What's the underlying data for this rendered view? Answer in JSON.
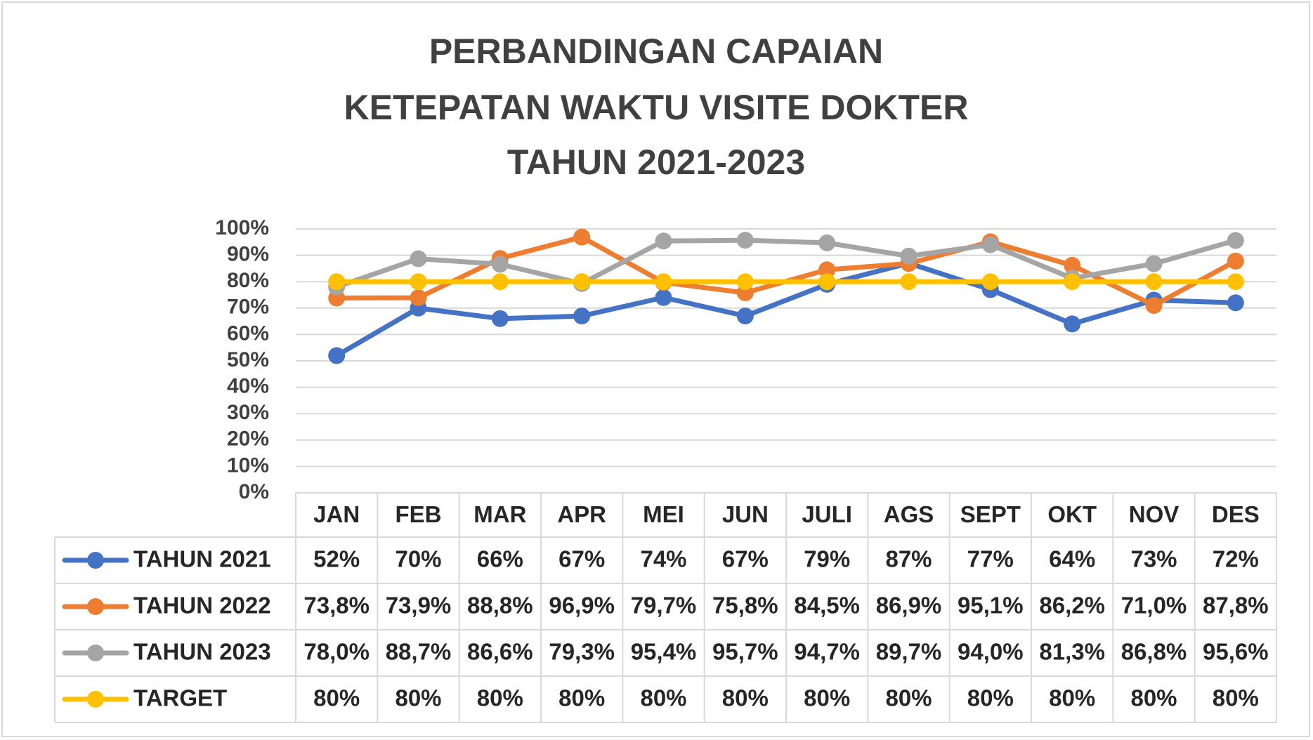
{
  "chart_data": {
    "type": "line",
    "title_lines": [
      "PERBANDINGAN CAPAIAN",
      "KETEPATAN WAKTU VISITE DOKTER",
      "TAHUN 2021-2023"
    ],
    "categories": [
      "JAN",
      "FEB",
      "MAR",
      "APR",
      "MEI",
      "JUN",
      "JULI",
      "AGS",
      "SEPT",
      "OKT",
      "NOV",
      "DES"
    ],
    "yticks": [
      "0%",
      "10%",
      "20%",
      "30%",
      "40%",
      "50%",
      "60%",
      "70%",
      "80%",
      "90%",
      "100%"
    ],
    "ylim": [
      0,
      100
    ],
    "grid": true,
    "legend": "data-table",
    "series": [
      {
        "name": "TAHUN 2021",
        "color": "#4472c4",
        "values": [
          52,
          70,
          66,
          67,
          74,
          67,
          79,
          87,
          77,
          64,
          73,
          72
        ],
        "labels": [
          "52%",
          "70%",
          "66%",
          "67%",
          "74%",
          "67%",
          "79%",
          "87%",
          "77%",
          "64%",
          "73%",
          "72%"
        ]
      },
      {
        "name": "TAHUN 2022",
        "color": "#ed7d31",
        "values": [
          73.8,
          73.9,
          88.8,
          96.9,
          79.7,
          75.8,
          84.5,
          86.9,
          95.1,
          86.2,
          71.0,
          87.8
        ],
        "labels": [
          "73,8%",
          "73,9%",
          "88,8%",
          "96,9%",
          "79,7%",
          "75,8%",
          "84,5%",
          "86,9%",
          "95,1%",
          "86,2%",
          "71,0%",
          "87,8%"
        ]
      },
      {
        "name": "TAHUN 2023",
        "color": "#a5a5a5",
        "values": [
          78.0,
          88.7,
          86.6,
          79.3,
          95.4,
          95.7,
          94.7,
          89.7,
          94.0,
          81.3,
          86.8,
          95.6
        ],
        "labels": [
          "78,0%",
          "88,7%",
          "86,6%",
          "79,3%",
          "95,4%",
          "95,7%",
          "94,7%",
          "89,7%",
          "94,0%",
          "81,3%",
          "86,8%",
          "95,6%"
        ]
      },
      {
        "name": "TARGET",
        "color": "#ffc000",
        "values": [
          80,
          80,
          80,
          80,
          80,
          80,
          80,
          80,
          80,
          80,
          80,
          80
        ],
        "labels": [
          "80%",
          "80%",
          "80%",
          "80%",
          "80%",
          "80%",
          "80%",
          "80%",
          "80%",
          "80%",
          "80%",
          "80%"
        ]
      }
    ]
  }
}
